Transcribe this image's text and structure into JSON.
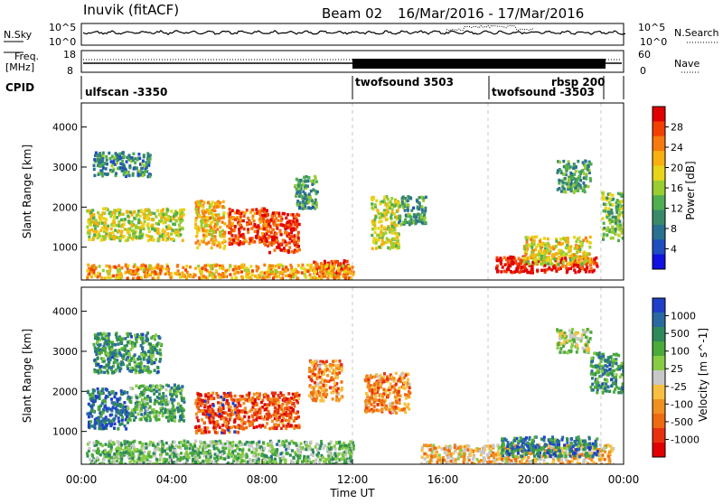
{
  "header": {
    "station": "Inuvik (fitACF)",
    "beam": "Beam 02",
    "date_range": "16/Mar/2016 - 17/Mar/2016"
  },
  "noise_panel": {
    "left_label": "N.Sky",
    "left_ticks": [
      "10^5",
      "10^0"
    ],
    "right_ticks": [
      "10^5",
      "10^0"
    ],
    "right_label": "N.Search"
  },
  "freq_panel": {
    "left_label_line1": "Freq.",
    "left_label_line2": "[MHz]",
    "left_ticks": [
      "18",
      "8"
    ],
    "right_ticks": [
      "60",
      "0"
    ],
    "right_label": "Nave"
  },
  "cpid": {
    "label": "CPID",
    "segments": [
      {
        "name": "ulfscan -3350",
        "start_h": 0,
        "end_h": 12
      },
      {
        "name": "twofsound 3503",
        "start_h": 12,
        "end_h": 18
      },
      {
        "name": "twofsound -3503",
        "start_h": 18,
        "end_h": 23
      },
      {
        "name": "rbsp 200",
        "start_h": 23,
        "end_h": 24
      }
    ]
  },
  "power_colorbar": {
    "label": "Power [dB]",
    "ticks": [
      "28",
      "24",
      "20",
      "16",
      "12",
      "8",
      "4"
    ],
    "colors": [
      "#e00000",
      "#f24000",
      "#f77a10",
      "#f8b010",
      "#e8d51a",
      "#9acd32",
      "#4fae4f",
      "#3a8a6a",
      "#2a7090",
      "#1e4ec0",
      "#1010e0"
    ]
  },
  "velocity_colorbar": {
    "label": "Velocity [m s^-1]",
    "ticks": [
      "1000",
      "500",
      "100",
      "25",
      "-25",
      "-100",
      "-500",
      "-1000"
    ],
    "colors": [
      "#1e40c8",
      "#2a6aa0",
      "#2e8a5a",
      "#4aaa3a",
      "#88cc44",
      "#c8c8c8",
      "#f8c040",
      "#f09020",
      "#ee6a10",
      "#e83010",
      "#e00000"
    ]
  },
  "chart_data": [
    {
      "type": "heatmap",
      "name": "power",
      "ylabel": "Slant Range [km]",
      "ylim": [
        180,
        4600
      ],
      "xlim_hours": [
        0,
        24
      ],
      "y_ticks": [
        1000,
        2000,
        3000,
        4000
      ],
      "x_ticks": [
        "00:00",
        "04:00",
        "08:00",
        "12:00",
        "16:00",
        "20:00",
        "00:00"
      ],
      "blobs": [
        {
          "t": [
            0.2,
            4.5
          ],
          "r": [
            1200,
            2000
          ],
          "level": 0.55
        },
        {
          "t": [
            0.5,
            3.0
          ],
          "r": [
            2800,
            3400
          ],
          "level": 0.3
        },
        {
          "t": [
            5.0,
            6.3
          ],
          "r": [
            1000,
            2200
          ],
          "level": 0.65
        },
        {
          "t": [
            6.4,
            8.2
          ],
          "r": [
            1100,
            2000
          ],
          "level": 0.85
        },
        {
          "t": [
            8.2,
            9.6
          ],
          "r": [
            900,
            1900
          ],
          "level": 0.9
        },
        {
          "t": [
            9.4,
            10.4
          ],
          "r": [
            2000,
            2800
          ],
          "level": 0.35
        },
        {
          "t": [
            10.2,
            11.8
          ],
          "r": [
            300,
            700
          ],
          "level": 0.95
        },
        {
          "t": [
            12.8,
            14.0
          ],
          "r": [
            1000,
            2300
          ],
          "level": 0.55
        },
        {
          "t": [
            14.0,
            15.2
          ],
          "r": [
            1600,
            2300
          ],
          "level": 0.35
        },
        {
          "t": [
            18.3,
            22.8
          ],
          "r": [
            400,
            800
          ],
          "level": 0.95
        },
        {
          "t": [
            19.5,
            22.5
          ],
          "r": [
            600,
            1300
          ],
          "level": 0.6
        },
        {
          "t": [
            21.0,
            22.5
          ],
          "r": [
            2400,
            3200
          ],
          "level": 0.35
        },
        {
          "t": [
            23.0,
            24.0
          ],
          "r": [
            1200,
            2400
          ],
          "level": 0.45
        },
        {
          "t": [
            0.2,
            12.0
          ],
          "r": [
            250,
            600
          ],
          "level": 0.7
        }
      ]
    },
    {
      "type": "heatmap",
      "name": "velocity",
      "ylabel": "Slant Range [km]",
      "xlabel": "Time UT",
      "ylim": [
        180,
        4600
      ],
      "xlim_hours": [
        0,
        24
      ],
      "y_ticks": [
        1000,
        2000,
        3000,
        4000
      ],
      "x_ticks": [
        "00:00",
        "04:00",
        "08:00",
        "12:00",
        "16:00",
        "20:00",
        "00:00"
      ],
      "blobs": [
        {
          "t": [
            0.2,
            2.0
          ],
          "r": [
            1100,
            2100
          ],
          "level": 0.85
        },
        {
          "t": [
            2.0,
            4.5
          ],
          "r": [
            1300,
            2200
          ],
          "level": 0.7
        },
        {
          "t": [
            0.5,
            3.5
          ],
          "r": [
            2500,
            3500
          ],
          "level": 0.75
        },
        {
          "t": [
            5.0,
            7.0
          ],
          "r": [
            1000,
            2000
          ],
          "level": 0.15
        },
        {
          "t": [
            7.0,
            9.6
          ],
          "r": [
            1100,
            2000
          ],
          "level": 0.2
        },
        {
          "t": [
            10.0,
            11.5
          ],
          "r": [
            1800,
            2800
          ],
          "level": 0.3
        },
        {
          "t": [
            0.2,
            12.0
          ],
          "r": [
            200,
            800
          ],
          "level": 0.65
        },
        {
          "t": [
            12.5,
            14.5
          ],
          "r": [
            1500,
            2500
          ],
          "level": 0.3
        },
        {
          "t": [
            15.0,
            23.5
          ],
          "r": [
            200,
            700
          ],
          "level": 0.4
        },
        {
          "t": [
            18.5,
            22.8
          ],
          "r": [
            400,
            900
          ],
          "level": 0.8
        },
        {
          "t": [
            21.0,
            22.5
          ],
          "r": [
            3000,
            3600
          ],
          "level": 0.55
        },
        {
          "t": [
            22.5,
            24.0
          ],
          "r": [
            2000,
            3000
          ],
          "level": 0.75
        }
      ]
    }
  ]
}
